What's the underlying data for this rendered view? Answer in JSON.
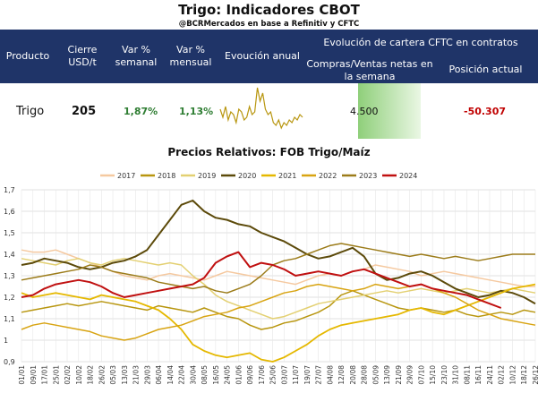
{
  "header": {
    "title": "Trigo: Indicadores CBOT",
    "subtitle": "@BCRMercados en base a Refinitiv y CFTC"
  },
  "table": {
    "col_producto": "Producto",
    "col_cierre": "Cierre USD/t",
    "col_var_sem": "Var % semanal",
    "col_var_men": "Var % mensual",
    "col_evol": "Evoución anual",
    "col_cftc_group": "Evolución de cartera CFTC en contratos",
    "col_compras": "Compras/Ventas netas en la semana",
    "col_posicion": "Posición actual",
    "row": {
      "producto": "Trigo",
      "cierre": "205",
      "var_sem": "1,87%",
      "var_men": "1,13%",
      "compras": "4.500",
      "posicion": "-50.307"
    },
    "colors": {
      "header_bg": "#1f3468",
      "positive": "#2e7d32",
      "negative": "#c00000",
      "bar": "#8fcf7a"
    },
    "sparkline": [
      0.55,
      0.4,
      0.6,
      0.35,
      0.5,
      0.45,
      0.3,
      0.55,
      0.5,
      0.35,
      0.4,
      0.6,
      0.45,
      0.5,
      0.95,
      0.7,
      0.85,
      0.55,
      0.45,
      0.5,
      0.3,
      0.25,
      0.35,
      0.2,
      0.3,
      0.25,
      0.35,
      0.3,
      0.4,
      0.35,
      0.45,
      0.4
    ]
  },
  "chart_data": {
    "type": "line",
    "title": "Precios Relativos: FOB Trigo/Maíz",
    "ylim": [
      0.9,
      1.7
    ],
    "yticks": [
      "0,9",
      "1",
      "1,1",
      "1,2",
      "1,3",
      "1,4",
      "1,5",
      "1,6",
      "1,7"
    ],
    "x_ticks": [
      "01/01",
      "09/01",
      "17/01",
      "25/01",
      "02/02",
      "10/02",
      "18/02",
      "26/02",
      "05/03",
      "13/03",
      "21/03",
      "29/03",
      "06/04",
      "14/04",
      "22/04",
      "30/04",
      "08/05",
      "16/05",
      "24/05",
      "01/06",
      "09/06",
      "17/06",
      "25/06",
      "03/07",
      "11/07",
      "19/07",
      "27/07",
      "04/08",
      "12/08",
      "20/08",
      "28/08",
      "05/09",
      "13/09",
      "21/09",
      "29/09",
      "07/10",
      "15/10",
      "23/10",
      "31/10",
      "08/11",
      "16/11",
      "24/11",
      "02/12",
      "10/12",
      "18/12",
      "26/12"
    ],
    "grid": true,
    "legend_position": "top",
    "series": [
      {
        "name": "2017",
        "color": "#f5c9a0",
        "width": 1.5,
        "values": [
          1.42,
          1.41,
          1.41,
          1.42,
          1.4,
          1.38,
          1.36,
          1.34,
          1.32,
          1.3,
          1.29,
          1.28,
          1.3,
          1.31,
          1.3,
          1.29,
          1.28,
          1.3,
          1.32,
          1.31,
          1.3,
          1.29,
          1.28,
          1.27,
          1.26,
          1.28,
          1.3,
          1.31,
          1.3,
          1.32,
          1.33,
          1.35,
          1.34,
          1.33,
          1.32,
          1.3,
          1.31,
          1.32,
          1.31,
          1.3,
          1.29,
          1.28,
          1.27,
          1.26,
          1.25,
          1.25
        ]
      },
      {
        "name": "2018",
        "color": "#b8960f",
        "width": 1.5,
        "values": [
          1.13,
          1.14,
          1.15,
          1.16,
          1.17,
          1.16,
          1.17,
          1.18,
          1.17,
          1.16,
          1.15,
          1.14,
          1.16,
          1.15,
          1.14,
          1.13,
          1.15,
          1.13,
          1.11,
          1.1,
          1.07,
          1.05,
          1.06,
          1.08,
          1.09,
          1.11,
          1.13,
          1.16,
          1.21,
          1.23,
          1.21,
          1.19,
          1.17,
          1.15,
          1.14,
          1.15,
          1.14,
          1.13,
          1.14,
          1.12,
          1.11,
          1.12,
          1.13,
          1.12,
          1.14,
          1.13
        ]
      },
      {
        "name": "2019",
        "color": "#e3d072",
        "width": 1.5,
        "values": [
          1.38,
          1.37,
          1.36,
          1.35,
          1.37,
          1.38,
          1.36,
          1.35,
          1.37,
          1.38,
          1.37,
          1.36,
          1.35,
          1.36,
          1.35,
          1.3,
          1.26,
          1.21,
          1.18,
          1.16,
          1.14,
          1.12,
          1.1,
          1.11,
          1.13,
          1.15,
          1.17,
          1.18,
          1.19,
          1.2,
          1.21,
          1.22,
          1.23,
          1.22,
          1.23,
          1.24,
          1.23,
          1.22,
          1.23,
          1.24,
          1.23,
          1.22,
          1.23,
          1.24,
          1.23,
          1.22
        ]
      },
      {
        "name": "2020",
        "color": "#5c4a0a",
        "width": 2.0,
        "values": [
          1.35,
          1.36,
          1.38,
          1.37,
          1.36,
          1.34,
          1.33,
          1.34,
          1.36,
          1.37,
          1.39,
          1.42,
          1.49,
          1.56,
          1.63,
          1.65,
          1.6,
          1.57,
          1.56,
          1.54,
          1.53,
          1.5,
          1.48,
          1.46,
          1.43,
          1.4,
          1.38,
          1.39,
          1.41,
          1.43,
          1.39,
          1.31,
          1.28,
          1.29,
          1.31,
          1.32,
          1.3,
          1.27,
          1.24,
          1.22,
          1.2,
          1.21,
          1.23,
          1.22,
          1.2,
          1.17
        ]
      },
      {
        "name": "2021",
        "color": "#e5b800",
        "width": 1.8,
        "values": [
          1.22,
          1.2,
          1.21,
          1.22,
          1.21,
          1.2,
          1.19,
          1.21,
          1.2,
          1.19,
          1.18,
          1.16,
          1.14,
          1.1,
          1.05,
          0.98,
          0.95,
          0.93,
          0.92,
          0.93,
          0.94,
          0.91,
          0.9,
          0.92,
          0.95,
          0.98,
          1.02,
          1.05,
          1.07,
          1.08,
          1.09,
          1.1,
          1.11,
          1.12,
          1.14,
          1.15,
          1.13,
          1.12,
          1.14,
          1.16,
          1.18,
          1.2,
          1.22,
          1.24,
          1.25,
          1.26
        ]
      },
      {
        "name": "2022",
        "color": "#d8a412",
        "width": 1.5,
        "values": [
          1.05,
          1.07,
          1.08,
          1.07,
          1.06,
          1.05,
          1.04,
          1.02,
          1.01,
          1.0,
          1.01,
          1.03,
          1.05,
          1.06,
          1.07,
          1.09,
          1.11,
          1.12,
          1.13,
          1.15,
          1.16,
          1.18,
          1.2,
          1.22,
          1.23,
          1.25,
          1.26,
          1.25,
          1.24,
          1.23,
          1.24,
          1.26,
          1.25,
          1.24,
          1.25,
          1.26,
          1.24,
          1.22,
          1.2,
          1.17,
          1.14,
          1.12,
          1.1,
          1.09,
          1.08,
          1.07
        ]
      },
      {
        "name": "2023",
        "color": "#9c7c1a",
        "width": 1.5,
        "values": [
          1.28,
          1.29,
          1.3,
          1.31,
          1.32,
          1.33,
          1.35,
          1.34,
          1.32,
          1.31,
          1.3,
          1.29,
          1.27,
          1.26,
          1.25,
          1.24,
          1.25,
          1.23,
          1.22,
          1.24,
          1.26,
          1.3,
          1.35,
          1.37,
          1.38,
          1.4,
          1.42,
          1.44,
          1.45,
          1.44,
          1.43,
          1.42,
          1.41,
          1.4,
          1.39,
          1.4,
          1.39,
          1.38,
          1.39,
          1.38,
          1.37,
          1.38,
          1.39,
          1.4,
          1.4,
          1.4
        ]
      },
      {
        "name": "2024",
        "color": "#c01010",
        "width": 2.0,
        "values": [
          1.2,
          1.21,
          1.24,
          1.26,
          1.27,
          1.28,
          1.27,
          1.25,
          1.22,
          1.2,
          1.21,
          1.22,
          1.23,
          1.24,
          1.25,
          1.26,
          1.29,
          1.36,
          1.39,
          1.41,
          1.34,
          1.36,
          1.35,
          1.33,
          1.3,
          1.31,
          1.32,
          1.31,
          1.3,
          1.32,
          1.33,
          1.31,
          1.29,
          1.27,
          1.25,
          1.26,
          1.24,
          1.23,
          1.22,
          1.21,
          1.19,
          1.17,
          1.15,
          null,
          null,
          null
        ]
      }
    ]
  }
}
